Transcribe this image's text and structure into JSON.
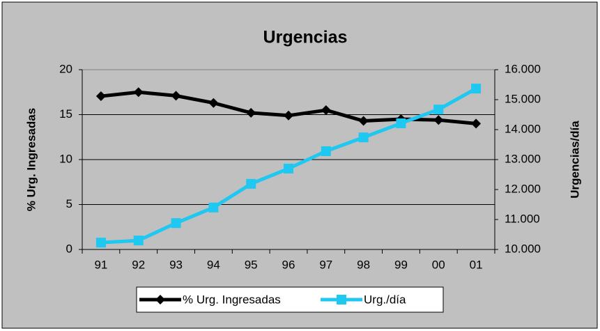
{
  "chart_data": {
    "type": "line",
    "title": "Urgencias",
    "categories": [
      "91",
      "92",
      "93",
      "94",
      "95",
      "96",
      "97",
      "98",
      "99",
      "00",
      "01"
    ],
    "ylabel": "% Urg. Ingresadas",
    "y2label": "Urgencias/día",
    "ylim": [
      0,
      20
    ],
    "yticks": [
      0,
      5,
      10,
      15,
      20
    ],
    "y2lim": [
      10000,
      16000
    ],
    "y2ticks": [
      {
        "value": 10000,
        "label": "10.000"
      },
      {
        "value": 11000,
        "label": "11.000"
      },
      {
        "value": 12000,
        "label": "12.000"
      },
      {
        "value": 13000,
        "label": "13.000"
      },
      {
        "value": 14000,
        "label": "14.000"
      },
      {
        "value": 15000,
        "label": "15.000"
      },
      {
        "value": 16000,
        "label": "16.000"
      }
    ],
    "grid": true,
    "legend": "bottom",
    "series": [
      {
        "name": "% Urg. Ingresadas",
        "color": "#000000",
        "marker": "diamond",
        "values": [
          17.05,
          17.5,
          17.1,
          16.3,
          15.2,
          14.9,
          15.5,
          14.3,
          14.5,
          14.4,
          14.0
        ]
      },
      {
        "name": "Urg./día",
        "color": "#1ec8f0",
        "marker": "square",
        "axis": "y2",
        "values": [
          10230,
          10300,
          10880,
          11400,
          12190,
          12700,
          13280,
          13740,
          14210,
          14670,
          15370
        ]
      }
    ]
  }
}
